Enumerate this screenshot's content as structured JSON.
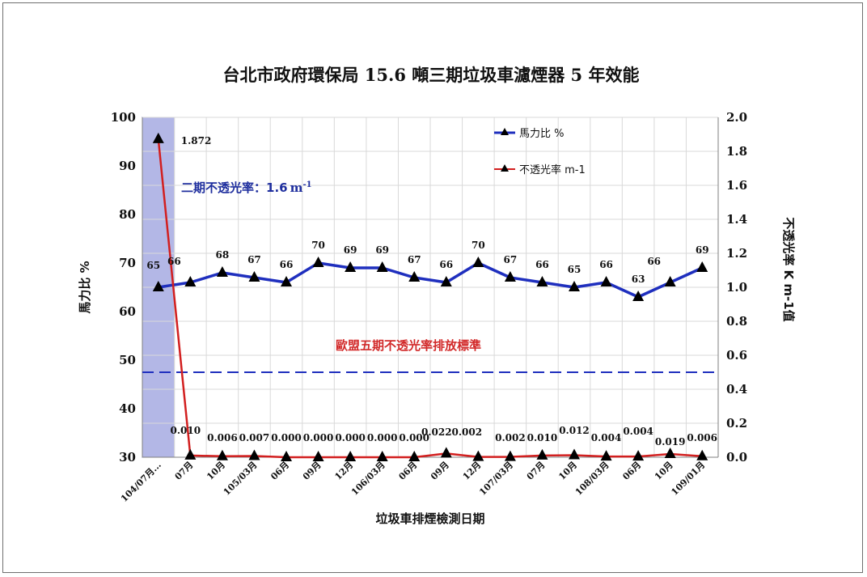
{
  "chart_data": {
    "type": "line",
    "title": "台北市政府環保局 15.6 噸三期垃圾車濾煙器 5 年效能",
    "xlabel": "垃圾車排煙檢測日期",
    "ylabel_left": "馬力比 %",
    "ylabel_right": "不透光率 K m-1值",
    "ylim_left": [
      30,
      100
    ],
    "ylim_right": [
      0.0,
      2.0
    ],
    "yticks_left": [
      "30",
      "40",
      "50",
      "60",
      "70",
      "80",
      "90",
      "100"
    ],
    "yticks_right": [
      "0.0",
      "0.2",
      "0.4",
      "0.6",
      "0.8",
      "1.0",
      "1.2",
      "1.4",
      "1.6",
      "1.8",
      "2.0"
    ],
    "categories": [
      "104/07月...",
      "07月",
      "10月",
      "105/03月",
      "06月",
      "09月",
      "12月",
      "106/03月",
      "06月",
      "09月",
      "12月",
      "107/03月",
      "07月",
      "10月",
      "108/03月",
      "06月",
      "10月",
      "109/01月"
    ],
    "series": [
      {
        "name": "馬力比 %",
        "axis": "left",
        "color": "#1f2fbe",
        "values": [
          65,
          66,
          68,
          67,
          66,
          70,
          69,
          69,
          67,
          66,
          70,
          67,
          66,
          65,
          66,
          63,
          66,
          69
        ],
        "labels": [
          "65",
          "66",
          "68",
          "67",
          "66",
          "70",
          "69",
          "69",
          "67",
          "66",
          "70",
          "67",
          "66",
          "65",
          "66",
          "63",
          "66",
          "69"
        ]
      },
      {
        "name": "不透光率 m-1",
        "axis": "right",
        "color": "#d21f1f",
        "values": [
          1.872,
          0.01,
          0.006,
          0.007,
          0.0,
          0.0,
          0.0,
          0.0,
          0.0,
          0.022,
          0.002,
          0.002,
          0.01,
          0.012,
          0.004,
          0.004,
          0.019,
          0.006
        ],
        "labels": [
          "1.872",
          "0.010",
          "0.006",
          "0.007",
          "0.000",
          "0.000",
          "0.000",
          "0.000",
          "0.000",
          "0.022",
          "0.002",
          "0.002",
          "0.010",
          "0.012",
          "0.004",
          "0.004",
          "0.019",
          "0.006"
        ]
      }
    ],
    "reference_line": {
      "label": "歐盟五期不透光率排放標準",
      "axis": "right",
      "value": 0.5,
      "color": "#1f2fbe"
    },
    "annotation": {
      "label": "二期不透光率：1.6",
      "unit_base": "m",
      "unit_exp": "-1",
      "color": "#1f2f9e"
    },
    "highlight_category": 0,
    "grid": true,
    "legend": "top-right"
  }
}
